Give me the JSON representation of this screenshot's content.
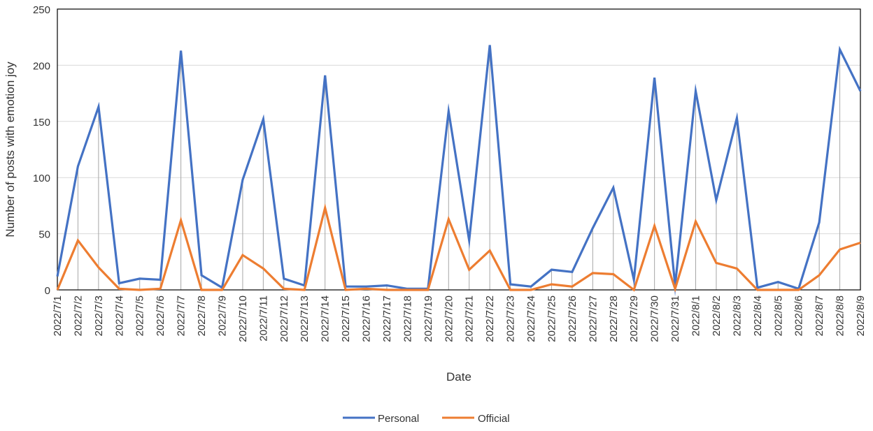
{
  "chart_data": {
    "type": "line",
    "xlabel": "Date",
    "ylabel": "Number of posts with emotion joy",
    "ylim": [
      0,
      250
    ],
    "yticks": [
      0,
      50,
      100,
      150,
      200,
      250
    ],
    "grid": true,
    "legend_position": "bottom",
    "categories": [
      "2022/7/1",
      "2022/7/2",
      "2022/7/3",
      "2022/7/4",
      "2022/7/5",
      "2022/7/6",
      "2022/7/7",
      "2022/7/8",
      "2022/7/9",
      "2022/7/10",
      "2022/7/11",
      "2022/7/12",
      "2022/7/13",
      "2022/7/14",
      "2022/7/15",
      "2022/7/16",
      "2022/7/17",
      "2022/7/18",
      "2022/7/19",
      "2022/7/20",
      "2022/7/21",
      "2022/7/22",
      "2022/7/23",
      "2022/7/24",
      "2022/7/25",
      "2022/7/26",
      "2022/7/27",
      "2022/7/28",
      "2022/7/29",
      "2022/7/30",
      "2022/7/31",
      "2022/8/1",
      "2022/8/2",
      "2022/8/3",
      "2022/8/4",
      "2022/8/5",
      "2022/8/6",
      "2022/8/7",
      "2022/8/8",
      "2022/8/9"
    ],
    "series": [
      {
        "name": "Personal",
        "color": "#4472C4",
        "values": [
          12,
          110,
          163,
          6,
          10,
          9,
          213,
          13,
          2,
          98,
          152,
          10,
          4,
          191,
          3,
          3,
          4,
          1,
          1,
          159,
          44,
          218,
          5,
          3,
          18,
          16,
          55,
          91,
          9,
          189,
          4,
          177,
          80,
          153,
          2,
          7,
          1,
          60,
          214,
          177
        ]
      },
      {
        "name": "Official",
        "color": "#ED7D31",
        "values": [
          0,
          44,
          20,
          1,
          0,
          1,
          62,
          0,
          0,
          31,
          19,
          1,
          0,
          73,
          0,
          1,
          0,
          0,
          0,
          63,
          18,
          35,
          0,
          0,
          5,
          3,
          15,
          14,
          0,
          57,
          1,
          61,
          24,
          19,
          0,
          0,
          0,
          13,
          36,
          42
        ]
      }
    ]
  }
}
